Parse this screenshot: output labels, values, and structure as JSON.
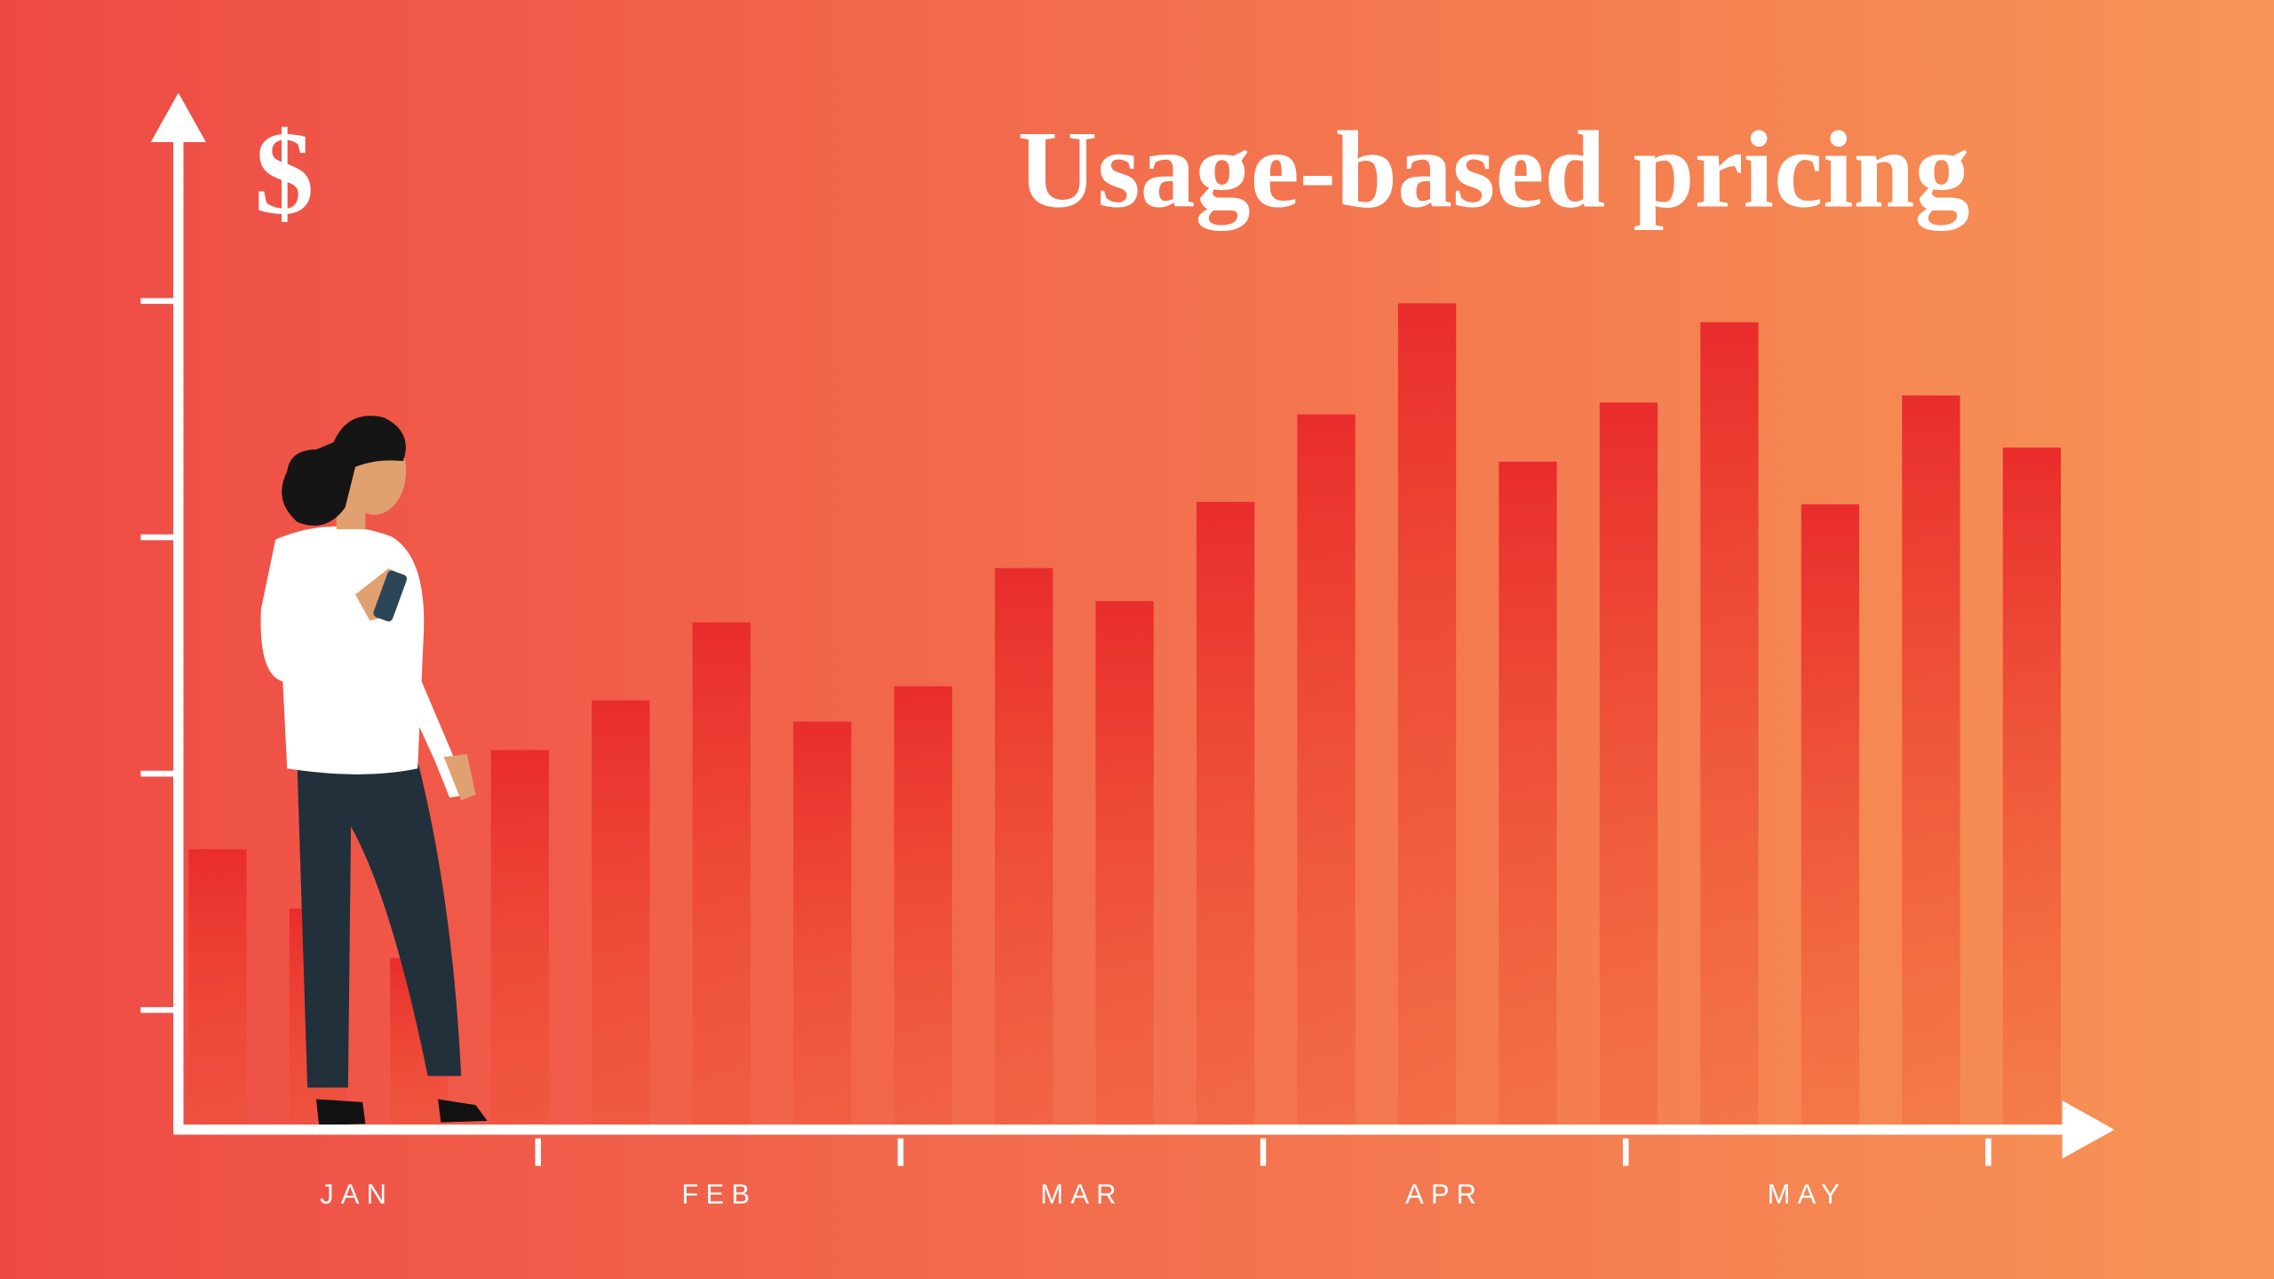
{
  "chart_data": {
    "type": "bar",
    "title": "Usage-based pricing",
    "y_label": "$",
    "categories": [
      null,
      null,
      null,
      null,
      null,
      null,
      null,
      null,
      null,
      null,
      null,
      null,
      null,
      null,
      null,
      null,
      null,
      null,
      null
    ],
    "values": [
      1.18,
      0.93,
      0.72,
      1.6,
      1.81,
      2.14,
      1.72,
      1.87,
      2.37,
      2.23,
      2.65,
      3.02,
      3.49,
      2.82,
      3.07,
      3.41,
      2.64,
      3.1,
      2.88
    ],
    "groups": [
      "JAN",
      "FEB",
      "MAR",
      "APR",
      "MAY"
    ],
    "color": "#e92c2c",
    "ylim": [
      0,
      4.35
    ],
    "yticks": [
      0.5,
      1.5,
      2.5,
      3.5
    ]
  }
}
